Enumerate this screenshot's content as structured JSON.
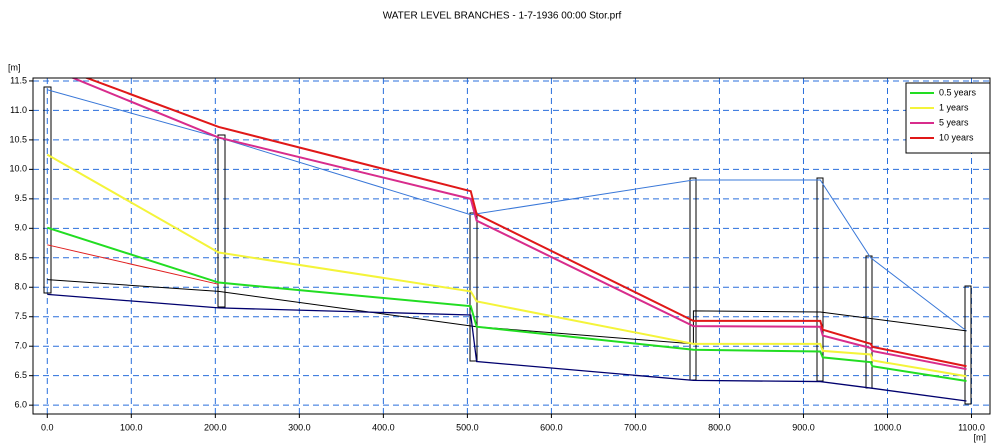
{
  "chart_data": {
    "type": "line",
    "title": "WATER LEVEL  BRANCHES - 1-7-1936 00:00 Stor.prf",
    "y_label": "[m]",
    "x_label": "[m]",
    "xlim": [
      -17,
      1122
    ],
    "ylim": [
      5.85,
      11.55
    ],
    "xticks": [
      {
        "value": 0,
        "label": "0.0"
      },
      {
        "value": 100,
        "label": "100.0"
      },
      {
        "value": 200,
        "label": "200.0"
      },
      {
        "value": 300,
        "label": "300.0"
      },
      {
        "value": 400,
        "label": "400.0"
      },
      {
        "value": 500,
        "label": "500.0"
      },
      {
        "value": 600,
        "label": "600.0"
      },
      {
        "value": 700,
        "label": "700.0"
      },
      {
        "value": 800,
        "label": "800.0"
      },
      {
        "value": 900,
        "label": "900.0"
      },
      {
        "value": 1000,
        "label": "1000.0"
      },
      {
        "value": 1100,
        "label": "1100.0"
      }
    ],
    "yticks": [
      {
        "value": 6,
        "label": "6.0"
      },
      6.5,
      {
        "value": 7,
        "label": "7.0"
      },
      7.5,
      {
        "value": 8,
        "label": "8.0"
      },
      8.5,
      {
        "value": 9,
        "label": "9.0"
      },
      9.5,
      {
        "value": 10,
        "label": "10.0"
      },
      10.5,
      {
        "value": 11,
        "label": "11.0"
      },
      11.5
    ],
    "grid": true,
    "legend": "top-right",
    "series": [
      {
        "color": "#3a78d8",
        "width": 1,
        "x": [
          0,
          204,
          504,
          769,
          920,
          980,
          1094
        ],
        "values": [
          11.35,
          10.54,
          9.23,
          9.82,
          9.82,
          8.5,
          7.26
        ]
      },
      {
        "color": "#e02020",
        "width": 1,
        "x": [
          0,
          204
        ],
        "values": [
          8.72,
          8.05
        ]
      },
      {
        "color": "#000000",
        "width": 1,
        "x": [
          0,
          204,
          511,
          769,
          769,
          920,
          1094
        ],
        "values": [
          8.13,
          7.93,
          7.33,
          7.04,
          7.6,
          7.58,
          7.26
        ]
      },
      {
        "color": "#00006e",
        "width": 1.3,
        "x": [
          0,
          204,
          504,
          511,
          769,
          920,
          980,
          1094
        ],
        "values": [
          7.88,
          7.65,
          7.53,
          6.74,
          6.42,
          6.4,
          6.29,
          6.07
        ]
      },
      {
        "name": "0.5 years",
        "color": "#22dd22",
        "width": 2,
        "x": [
          0,
          204,
          504,
          511,
          769,
          920,
          923,
          980,
          982,
          1094
        ],
        "values": [
          9.01,
          8.08,
          7.68,
          7.33,
          6.94,
          6.91,
          6.81,
          6.73,
          6.66,
          6.41
        ]
      },
      {
        "name": "1 years",
        "color": "#f4f43a",
        "width": 2,
        "x": [
          0,
          204,
          504,
          511,
          769,
          920,
          923,
          980,
          982,
          1094
        ],
        "values": [
          10.25,
          8.59,
          7.93,
          7.76,
          7.04,
          7.04,
          6.92,
          6.86,
          6.76,
          6.49
        ]
      },
      {
        "name": "5 years",
        "color": "#d82c8c",
        "width": 2,
        "x": [
          0,
          204,
          504,
          511,
          769,
          920,
          923,
          980,
          982,
          1094
        ],
        "values": [
          11.73,
          10.54,
          9.5,
          9.13,
          7.34,
          7.33,
          7.18,
          6.97,
          6.92,
          6.61
        ]
      },
      {
        "name": "10 years",
        "color": "#e01818",
        "width": 2,
        "x": [
          0,
          204,
          504,
          511,
          769,
          920,
          923,
          980,
          982,
          1094
        ],
        "values": [
          11.8,
          10.72,
          9.63,
          9.24,
          7.43,
          7.43,
          7.28,
          7.04,
          6.99,
          6.66
        ]
      }
    ]
  }
}
